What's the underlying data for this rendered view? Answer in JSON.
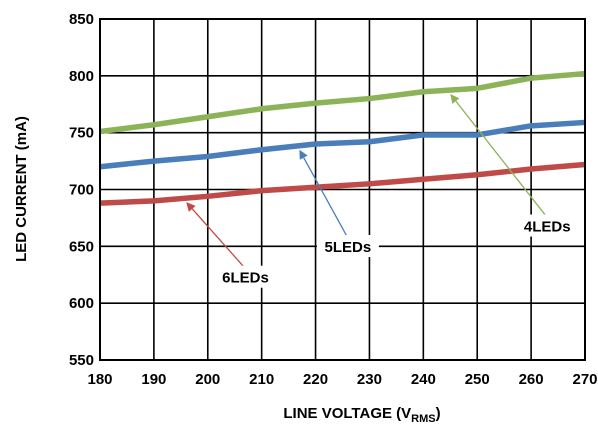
{
  "chart_data": {
    "type": "line",
    "xlabel": "LINE VOLTAGE (V",
    "xlabel_sub": "RMS",
    "xlabel_close": ")",
    "ylabel": "LED CURRENT (mA)",
    "xlim": [
      180,
      270
    ],
    "ylim": [
      550,
      850
    ],
    "x_ticks": [
      180,
      190,
      200,
      210,
      220,
      230,
      240,
      250,
      260,
      270
    ],
    "y_ticks": [
      550,
      600,
      650,
      700,
      750,
      800,
      850
    ],
    "grid": true,
    "x": [
      180,
      190,
      200,
      210,
      220,
      230,
      240,
      250,
      260,
      270
    ],
    "series": [
      {
        "name": "4LEDs",
        "color": "#8DB359",
        "values": [
          751,
          757,
          764,
          771,
          776,
          780,
          786,
          789,
          798,
          802
        ]
      },
      {
        "name": "5LEDs",
        "color": "#4A7EBB",
        "values": [
          720,
          725,
          729,
          735,
          740,
          742,
          748,
          748,
          756,
          759
        ]
      },
      {
        "name": "6LEDs",
        "color": "#BE4B48",
        "values": [
          688,
          690,
          694,
          699,
          702,
          705,
          709,
          713,
          718,
          722
        ]
      }
    ],
    "annotations": [
      {
        "text": "4LEDs",
        "series": "4LEDs",
        "x_data": 245,
        "label_x": 263,
        "label_y": 663,
        "arrow_color": "#8DB359"
      },
      {
        "text": "5LEDs",
        "series": "5LEDs",
        "x_data": 217,
        "label_x": 226,
        "label_y": 645,
        "arrow_color": "#4A7EBB"
      },
      {
        "text": "6LEDs",
        "series": "6LEDs",
        "x_data": 196,
        "label_x": 207,
        "label_y": 618,
        "arrow_color": "#BE4B48"
      }
    ]
  }
}
